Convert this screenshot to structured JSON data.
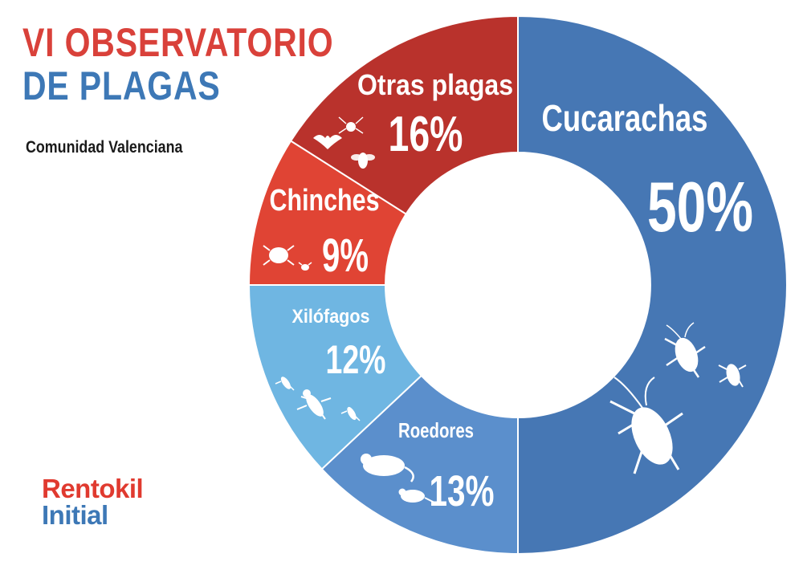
{
  "header": {
    "title_line1": "VI OBSERVATORIO",
    "title_line2": "DE PLAGAS",
    "subtitle": "Comunidad Valenciana"
  },
  "logo": {
    "line1": "Rentokil",
    "line2": "Initial"
  },
  "colors": {
    "title_red": "#d9413a",
    "title_blue": "#3d78b6",
    "logo_red": "#e03a2f",
    "logo_blue": "#3d78b6"
  },
  "chart_data": {
    "type": "pie",
    "donut": true,
    "unit": "%",
    "slices": [
      {
        "name": "Cucarachas",
        "value": 50,
        "label": "50%",
        "color": "#4677b4"
      },
      {
        "name": "Roedores",
        "value": 13,
        "label": "13%",
        "color": "#5b8fcc"
      },
      {
        "name": "Xilófagos",
        "value": 12,
        "label": "12%",
        "color": "#6fb6e2"
      },
      {
        "name": "Chinches",
        "value": 9,
        "label": "9%",
        "color": "#e04434"
      },
      {
        "name": "Otras plagas",
        "value": 16,
        "label": "16%",
        "color": "#b9322c"
      }
    ]
  }
}
